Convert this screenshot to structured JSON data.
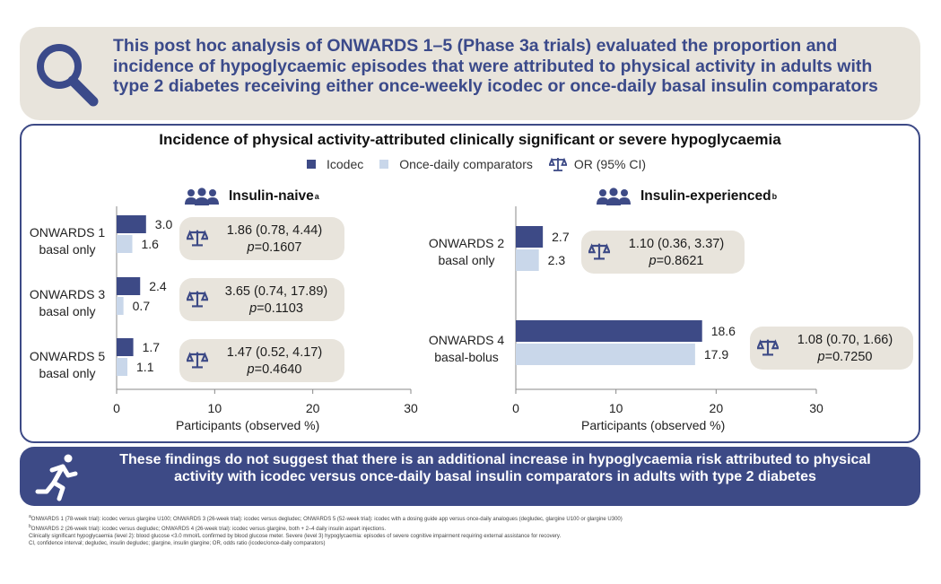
{
  "header": {
    "text": "This post hoc analysis of ONWARDS 1–5 (Phase 3a trials) evaluated the proportion and incidence of hypoglycaemic episodes that were attributed to physical activity in adults with type 2 diabetes receiving either once-weekly icodec or once-daily basal insulin comparators"
  },
  "chart_title": "Incidence of physical activity-attributed clinically significant or severe hypoglycaemia",
  "legend": {
    "icodec": "Icodec",
    "comparators": "Once-daily comparators",
    "or": "OR (95% CI)"
  },
  "colors": {
    "icodec": "#3d4a86",
    "comparators": "#c9d7ea",
    "pill": "#e8e4dc",
    "border": "#3d4a86"
  },
  "panels": {
    "left": {
      "title": "Insulin-naive",
      "title_sup": "a",
      "xlabel": "Participants (observed %)",
      "ticks": [
        "0",
        "10",
        "20",
        "30"
      ],
      "rows": [
        {
          "label1": "ONWARDS 1",
          "label2": "basal only",
          "icodec_label": "3.0",
          "comp_label": "1.6",
          "or": "1.86 (0.78, 4.44)",
          "p": "=0.1607"
        },
        {
          "label1": "ONWARDS 3",
          "label2": "basal only",
          "icodec_label": "2.4",
          "comp_label": "0.7",
          "or": "3.65 (0.74, 17.89)",
          "p": "=0.1103"
        },
        {
          "label1": "ONWARDS 5",
          "label2": "basal only",
          "icodec_label": "1.7",
          "comp_label": "1.1",
          "or": "1.47 (0.52, 4.17)",
          "p": "=0.4640"
        }
      ]
    },
    "right": {
      "title": "Insulin-experienced",
      "title_sup": "b",
      "xlabel": "Participants (observed %)",
      "ticks": [
        "0",
        "10",
        "20",
        "30"
      ],
      "rows": [
        {
          "label1": "ONWARDS 2",
          "label2": "basal only",
          "icodec_label": "2.7",
          "comp_label": "2.3",
          "or": "1.10 (0.36, 3.37)",
          "p": "=0.8621"
        },
        {
          "label1": "ONWARDS 4",
          "label2": "basal-bolus",
          "icodec_label": "18.6",
          "comp_label": "17.9",
          "or": "1.08 (0.70, 1.66)",
          "p": "=0.7250"
        }
      ]
    }
  },
  "p_prefix": "p",
  "footer": {
    "text": "These findings do not suggest that there is an additional increase in hypoglycaemia risk attributed to physical activity with icodec versus once-daily basal insulin comparators in adults with type 2 diabetes"
  },
  "footnotes": {
    "a_sup": "a",
    "a": "ONWARDS 1 (78-week trial): icodec versus glargine U100; ONWARDS 3 (26-week trial): icodec versus degludec; ONWARDS 5 (52-week trial): icodec with a dosing guide app versus once-daily analogues (degludec, glargine U100 or glargine U300)",
    "b_sup": "b",
    "b": "ONWARDS 2 (26-week trial): icodec versus degludec; ONWARDS 4 (26-week trial): icodec versus glargine, both + 2–4 daily insulin aspart injections.",
    "line3": "Clinically significant hypoglycaemia (level 2): blood glucose <3.0 mmol/L confirmed by blood glucose meter. Severe (level 3) hypoglycaemia: episodes of severe cognitive impairment requiring external assistance for recovery.",
    "line4": "CI, confidence interval; degludec, insulin degludec; glargine, insulin glargine; OR, odds ratio (icodec/once-daily comparators)"
  },
  "chart_data": [
    {
      "type": "bar",
      "orientation": "horizontal",
      "title": "Insulin-naive",
      "categories": [
        "ONWARDS 1 basal only",
        "ONWARDS 3 basal only",
        "ONWARDS 5 basal only"
      ],
      "series": [
        {
          "name": "Icodec",
          "values": [
            3.0,
            2.4,
            1.7
          ]
        },
        {
          "name": "Once-daily comparators",
          "values": [
            1.6,
            0.7,
            1.1
          ]
        }
      ],
      "xlabel": "Participants (observed %)",
      "xlim": [
        0,
        30
      ],
      "annotations": [
        "1.86 (0.78, 4.44) p=0.1607",
        "3.65 (0.74, 17.89) p=0.1103",
        "1.47 (0.52, 4.17) p=0.4640"
      ]
    },
    {
      "type": "bar",
      "orientation": "horizontal",
      "title": "Insulin-experienced",
      "categories": [
        "ONWARDS 2 basal only",
        "ONWARDS 4 basal-bolus"
      ],
      "series": [
        {
          "name": "Icodec",
          "values": [
            2.7,
            18.6
          ]
        },
        {
          "name": "Once-daily comparators",
          "values": [
            2.3,
            17.9
          ]
        }
      ],
      "xlabel": "Participants (observed %)",
      "xlim": [
        0,
        30
      ],
      "annotations": [
        "1.10 (0.36, 3.37) p=0.8621",
        "1.08 (0.70, 1.66) p=0.7250"
      ]
    }
  ]
}
